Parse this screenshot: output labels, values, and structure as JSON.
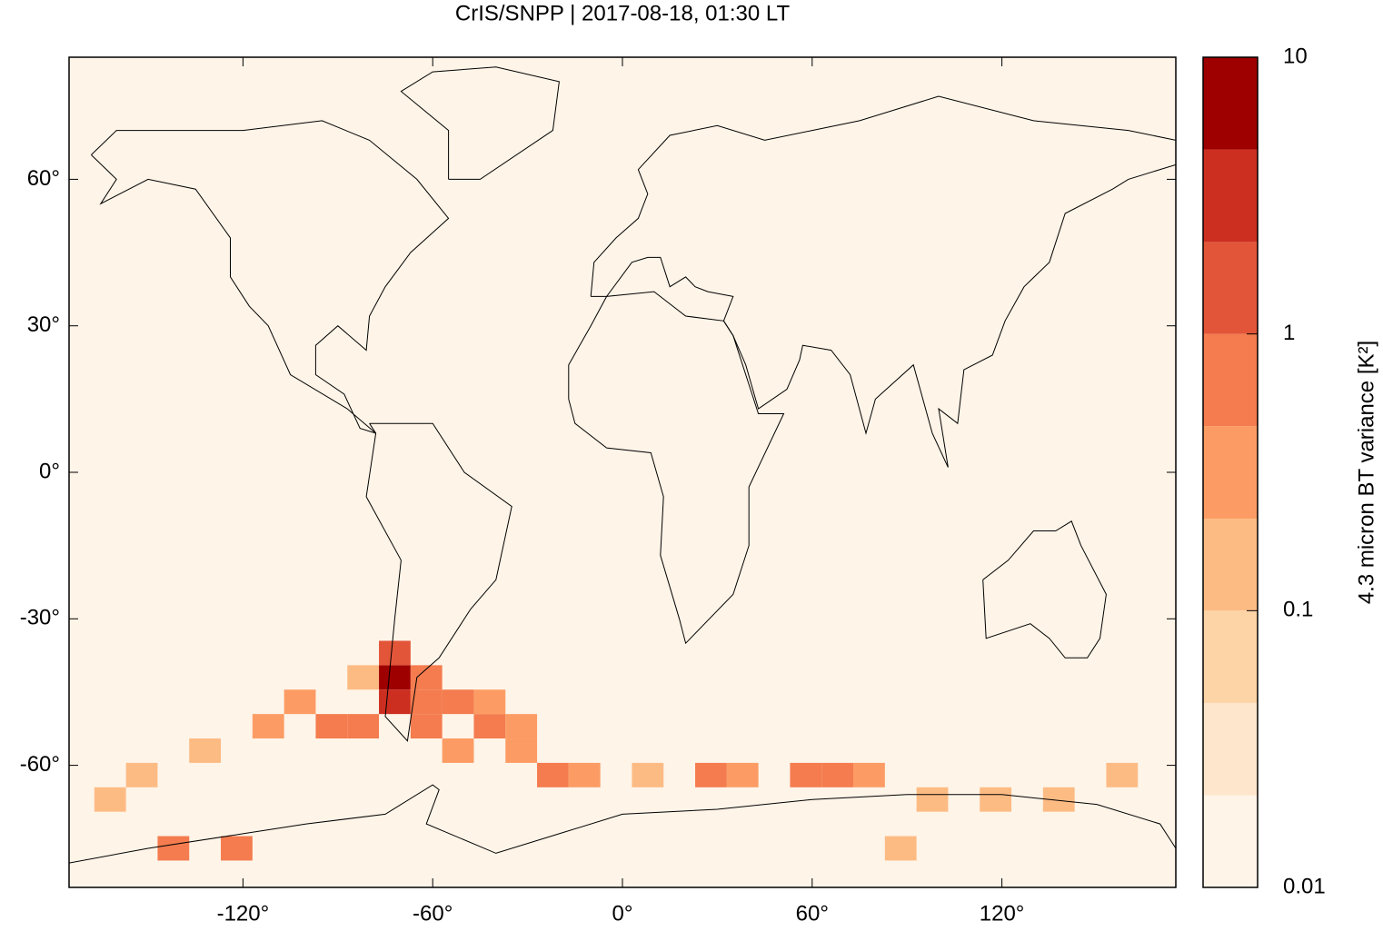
{
  "chart_data": {
    "type": "map",
    "title": "CrIS/SNPP | 2017-08-18, 01:30 LT",
    "xlim": [
      -175,
      175
    ],
    "ylim": [
      -85,
      85
    ],
    "xticks": [
      {
        "value": -120,
        "label": "-120°"
      },
      {
        "value": -60,
        "label": "-60°"
      },
      {
        "value": 0,
        "label": "0°"
      },
      {
        "value": 60,
        "label": "60°"
      },
      {
        "value": 120,
        "label": "120°"
      }
    ],
    "yticks": [
      {
        "value": 60,
        "label": "60°"
      },
      {
        "value": 30,
        "label": "30°"
      },
      {
        "value": 0,
        "label": "0°"
      },
      {
        "value": -30,
        "label": "-30°"
      },
      {
        "value": -60,
        "label": "-60°"
      }
    ],
    "colorbar": {
      "label": "4.3 micron BT variance [K²]",
      "scale": "log",
      "lim": [
        0.01,
        10
      ],
      "ticks": [
        0.01,
        0.1,
        1,
        10
      ],
      "levels": [
        0.01,
        0.0215,
        0.0464,
        0.1,
        0.215,
        0.464,
        1,
        2.15,
        4.64,
        10
      ],
      "colors": [
        "#fef4e8",
        "#fde6cb",
        "#fdd4a6",
        "#fdbb84",
        "#fc9c64",
        "#f47c4f",
        "#e35539",
        "#cc2e20",
        "#9e0000"
      ]
    },
    "cells": [
      {
        "lon": -72,
        "lat": -42,
        "value": 6
      },
      {
        "lon": -72,
        "lat": -47,
        "value": 3
      },
      {
        "lon": -72,
        "lat": -37,
        "value": 1.2
      },
      {
        "lon": -62,
        "lat": -42,
        "value": 0.8
      },
      {
        "lon": -62,
        "lat": -47,
        "value": 0.9
      },
      {
        "lon": -62,
        "lat": -52,
        "value": 0.7
      },
      {
        "lon": -52,
        "lat": -47,
        "value": 0.5
      },
      {
        "lon": -42,
        "lat": -52,
        "value": 0.6
      },
      {
        "lon": -42,
        "lat": -47,
        "value": 0.4
      },
      {
        "lon": -32,
        "lat": -52,
        "value": 0.4
      },
      {
        "lon": -22,
        "lat": -62,
        "value": 0.8
      },
      {
        "lon": -32,
        "lat": -57,
        "value": 0.4
      },
      {
        "lon": -82,
        "lat": -52,
        "value": 0.5
      },
      {
        "lon": -92,
        "lat": -52,
        "value": 0.5
      },
      {
        "lon": -102,
        "lat": -47,
        "value": 0.3
      },
      {
        "lon": -112,
        "lat": -52,
        "value": 0.25
      },
      {
        "lon": -132,
        "lat": -57,
        "value": 0.2
      },
      {
        "lon": -152,
        "lat": -62,
        "value": 0.15
      },
      {
        "lon": -142,
        "lat": -77,
        "value": 0.8
      },
      {
        "lon": -122,
        "lat": -77,
        "value": 0.5
      },
      {
        "lon": -12,
        "lat": -62,
        "value": 0.3
      },
      {
        "lon": 8,
        "lat": -62,
        "value": 0.2
      },
      {
        "lon": 28,
        "lat": -62,
        "value": 0.5
      },
      {
        "lon": 38,
        "lat": -62,
        "value": 0.4
      },
      {
        "lon": 58,
        "lat": -62,
        "value": 0.6
      },
      {
        "lon": 68,
        "lat": -62,
        "value": 0.8
      },
      {
        "lon": 78,
        "lat": -62,
        "value": 0.3
      },
      {
        "lon": 98,
        "lat": -67,
        "value": 0.2
      },
      {
        "lon": 118,
        "lat": -67,
        "value": 0.2
      },
      {
        "lon": 138,
        "lat": -67,
        "value": 0.15
      },
      {
        "lon": 158,
        "lat": -62,
        "value": 0.2
      },
      {
        "lon": 88,
        "lat": -77,
        "value": 0.2
      },
      {
        "lon": -82,
        "lat": -42,
        "value": 0.2
      },
      {
        "lon": -52,
        "lat": -57,
        "value": 0.3
      },
      {
        "lon": -162,
        "lat": -67,
        "value": 0.15
      }
    ]
  }
}
